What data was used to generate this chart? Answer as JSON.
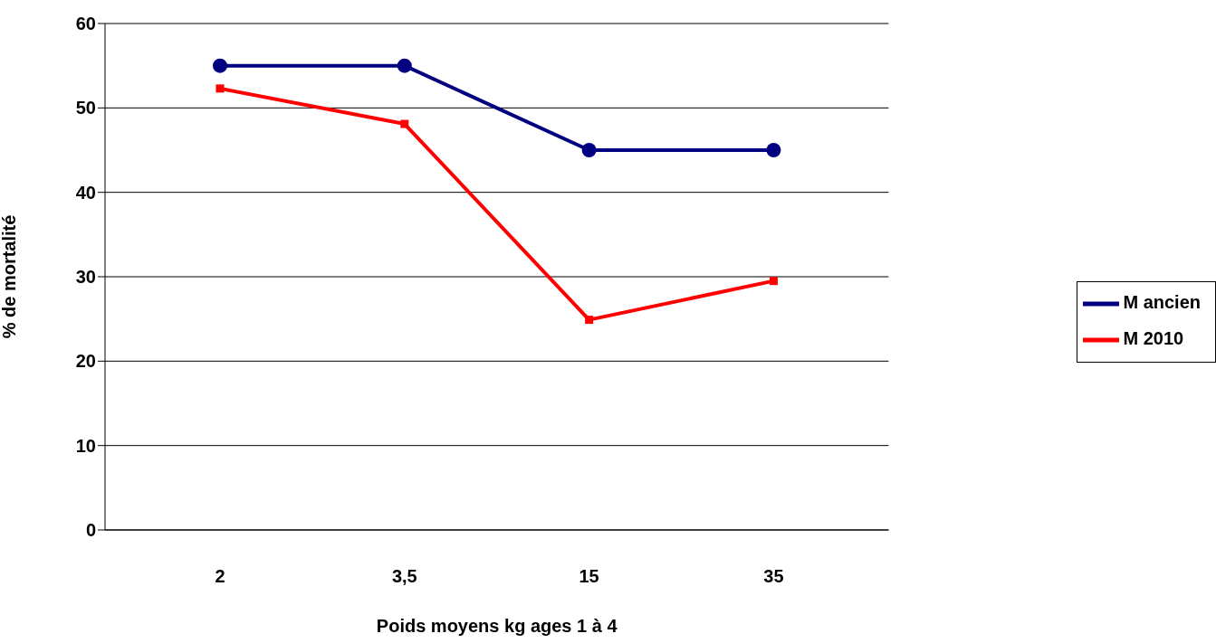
{
  "chart_data": {
    "type": "line",
    "xlabel": "Poids moyens kg ages 1 à 4",
    "ylabel": "% de mortalité",
    "categories": [
      "2",
      "3,5",
      "15",
      "35"
    ],
    "series": [
      {
        "name": "M ancien",
        "color": "#000080",
        "marker": "circle",
        "values": [
          55,
          55,
          45,
          45
        ]
      },
      {
        "name": "M 2010",
        "color": "#ff0000",
        "marker": "square",
        "values": [
          52.3,
          48.1,
          24.9,
          29.5
        ]
      }
    ],
    "ylim": [
      0,
      60
    ],
    "yticks": [
      0,
      10,
      20,
      30,
      40,
      50,
      60
    ],
    "grid": "y",
    "legend": "right",
    "line_style": "solid"
  }
}
